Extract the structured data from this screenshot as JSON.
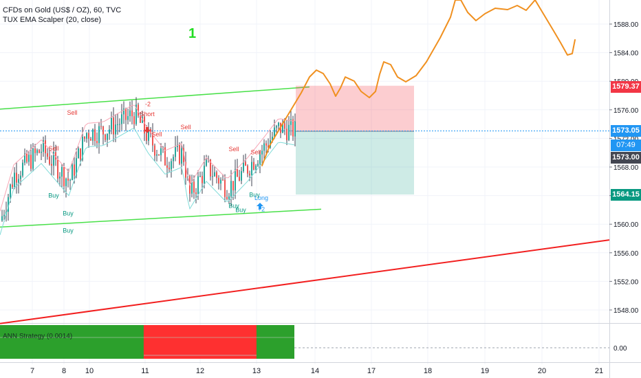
{
  "chart_data": {
    "type": "candlestick",
    "symbol_line": "CFDs on Gold (US$ / OZ), 60, TVC",
    "indicator_line": "TUX EMA Scalper (20, close)",
    "annotation_number": "1",
    "ylim": [
      1545,
      1592
    ],
    "yticks": [
      1548.0,
      1552.0,
      1556.0,
      1560.0,
      1564.0,
      1568.0,
      1572.0,
      1576.0,
      1580.0,
      1584.0,
      1588.0
    ],
    "ytick_labels": [
      "1548.00",
      "1552.00",
      "1556.00",
      "1560.00",
      "1564.00",
      "1568.00",
      "1572.00",
      "1576.00",
      "1580.00",
      "1584.00",
      "1588.00"
    ],
    "xticks": [
      "7",
      "8",
      "10",
      "11",
      "12",
      "13",
      "14",
      "17",
      "18",
      "19",
      "20",
      "21"
    ],
    "x_positions_days": [
      7,
      8,
      10,
      11,
      12,
      13,
      14,
      17,
      18,
      19,
      20,
      21
    ],
    "price_tags": [
      {
        "label": "1579.37",
        "value": 1579.37,
        "color": "#f23645"
      },
      {
        "label": "1573.05",
        "value": 1573.05,
        "color": "#2196f3"
      },
      {
        "label": "07:49",
        "value": 1572.0,
        "color": "#2196f3"
      },
      {
        "label": "1573.00",
        "value": 1570.8,
        "color": "#434651"
      },
      {
        "label": "1564.15",
        "value": 1564.15,
        "color": "#089981"
      }
    ],
    "current_price": 1573.05,
    "position": {
      "entry": 1573.0,
      "stop": 1579.37,
      "target": 1564.15
    },
    "channel_upper": {
      "start": 1576.1,
      "end": 1579.2
    },
    "channel_lower": {
      "start": 1559.6,
      "end": 1562.1
    },
    "support_line": {
      "start": 1546.1,
      "end": 1557.8
    },
    "signals": [
      {
        "label": "Sell",
        "value": 1575.3,
        "type": "sell"
      },
      {
        "label": "Sell",
        "value": 1570.3,
        "type": "sell"
      },
      {
        "label": "Sell",
        "value": 1572.3,
        "type": "sell"
      },
      {
        "label": "Short",
        "value": 1575.1,
        "type": "sell"
      },
      {
        "label": "-2",
        "value": 1576.5,
        "type": "sell"
      },
      {
        "label": "Sell",
        "value": 1573.3,
        "type": "sell"
      },
      {
        "label": "Sell",
        "value": 1570.2,
        "type": "sell"
      },
      {
        "label": "Sell",
        "value": 1569.8,
        "type": "sell"
      },
      {
        "label": "Buy",
        "value": 1563.7,
        "type": "buy"
      },
      {
        "label": "Buy",
        "value": 1561.2,
        "type": "buy"
      },
      {
        "label": "Buy",
        "value": 1558.8,
        "type": "buy"
      },
      {
        "label": "Buy",
        "value": 1562.3,
        "type": "buy"
      },
      {
        "label": "Buy",
        "value": 1563.8,
        "type": "buy"
      },
      {
        "label": "Buy",
        "value": 1561.7,
        "type": "buy"
      },
      {
        "label": "Long",
        "value": 1563.4,
        "type": "long"
      },
      {
        "label": "+2",
        "value": 1561.8,
        "type": "long"
      }
    ],
    "oscillator": {
      "label": "ANN Strategy (0.0014)",
      "ytick_label": "0.00",
      "segments": [
        {
          "color": "#2ca02c",
          "value": 1
        },
        {
          "color": "#ff2f2f",
          "value": -1
        },
        {
          "color": "#2ca02c",
          "value": 1
        }
      ]
    }
  }
}
